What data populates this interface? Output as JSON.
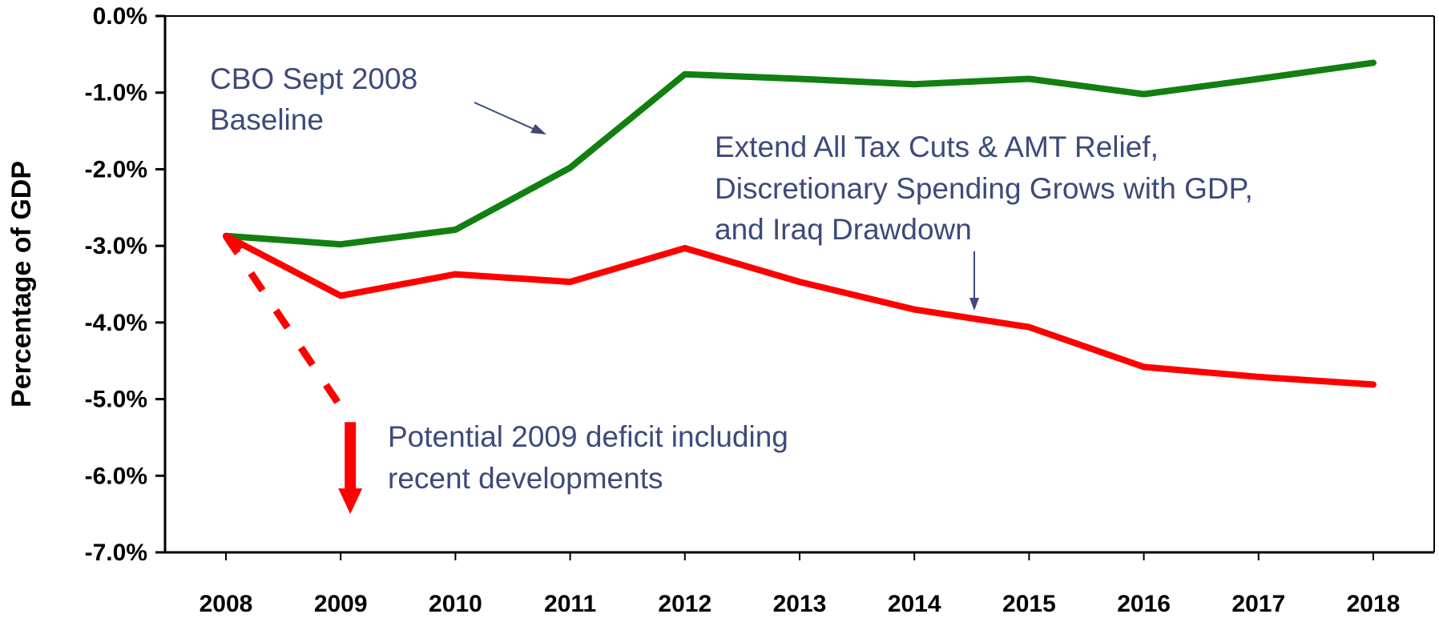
{
  "chart_data": {
    "type": "line",
    "title": "",
    "xlabel": "",
    "ylabel": "Percentage of GDP",
    "x": [
      2008,
      2009,
      2010,
      2011,
      2012,
      2013,
      2014,
      2015,
      2016,
      2017,
      2018
    ],
    "x_tick_labels": [
      "2008",
      "2009",
      "2010",
      "2011",
      "2012",
      "2013",
      "2014",
      "2015",
      "2016",
      "2017",
      "2018"
    ],
    "ylim": [
      -7.0,
      0.0
    ],
    "y_ticks": [
      0,
      -1,
      -2,
      -3,
      -4,
      -5,
      -6,
      -7
    ],
    "y_tick_labels": [
      "0.0%",
      "-1.0%",
      "-2.0%",
      "-3.0%",
      "-4.0%",
      "-5.0%",
      "-6.0%",
      "-7.0%"
    ],
    "grid": false,
    "series": [
      {
        "color": "#118011",
        "values": [
          -2.87,
          -2.98,
          -2.79,
          -1.98,
          -0.76,
          -0.82,
          -0.89,
          -0.82,
          -1.02,
          -0.82,
          -0.61
        ]
      },
      {
        "color": "#ff0000",
        "values": [
          -2.87,
          -3.65,
          -3.37,
          -3.47,
          -3.03,
          -3.47,
          -3.83,
          -4.06,
          -4.58,
          -4.71,
          -4.81
        ]
      }
    ],
    "projection": {
      "color": "#ff0000",
      "style": "dashed",
      "from": {
        "x": 2008,
        "y": -2.87
      },
      "to": {
        "x": 2009,
        "y": -5.1
      },
      "arrow_to_y": -6.5
    },
    "annotations": {
      "baseline": [
        "CBO Sept 2008",
        "Baseline"
      ],
      "extend": [
        "Extend All Tax Cuts & AMT Relief,",
        "Discretionary Spending Grows with GDP,",
        "and Iraq Drawdown"
      ],
      "potential": [
        "Potential 2009 deficit including",
        "recent developments"
      ]
    }
  }
}
